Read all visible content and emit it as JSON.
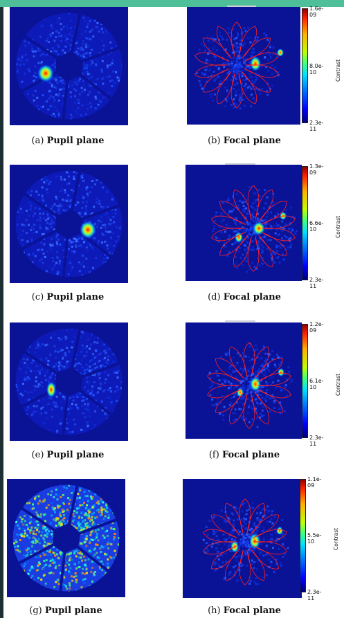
{
  "figures": [
    {
      "pupil": {
        "letter": "(a)",
        "label": "Pupil plane"
      },
      "focal": {
        "letter": "(b)",
        "label": "Focal plane"
      },
      "colorbar": {
        "max": "1.6e-09",
        "mid": "8.0e-10",
        "min": "2.3e-11",
        "title": "Contrast"
      }
    },
    {
      "pupil": {
        "letter": "(c)",
        "label": "Pupil plane"
      },
      "focal": {
        "letter": "(d)",
        "label": "Focal plane"
      },
      "colorbar": {
        "max": "1.3e-09",
        "mid": "6.6e-10",
        "min": "2.3e-11",
        "title": "Contrast"
      }
    },
    {
      "pupil": {
        "letter": "(e)",
        "label": "Pupil plane"
      },
      "focal": {
        "letter": "(f)",
        "label": "Focal plane"
      },
      "colorbar": {
        "max": "1.2e-09",
        "mid": "6.1e-10",
        "min": "2.3e-11",
        "title": "Contrast"
      }
    },
    {
      "pupil": {
        "letter": "(g)",
        "label": "Pupil plane"
      },
      "focal": {
        "letter": "(h)",
        "label": "Focal plane"
      },
      "colorbar": {
        "max": "1.1e-09",
        "mid": "5.5e-10",
        "min": "2.3e-11",
        "title": "Contrast"
      }
    }
  ],
  "colors": {
    "background": "#0a1296",
    "contour": "#ff2020",
    "topbar": "#4fbf9a",
    "sidebar": "#1d2e35"
  }
}
